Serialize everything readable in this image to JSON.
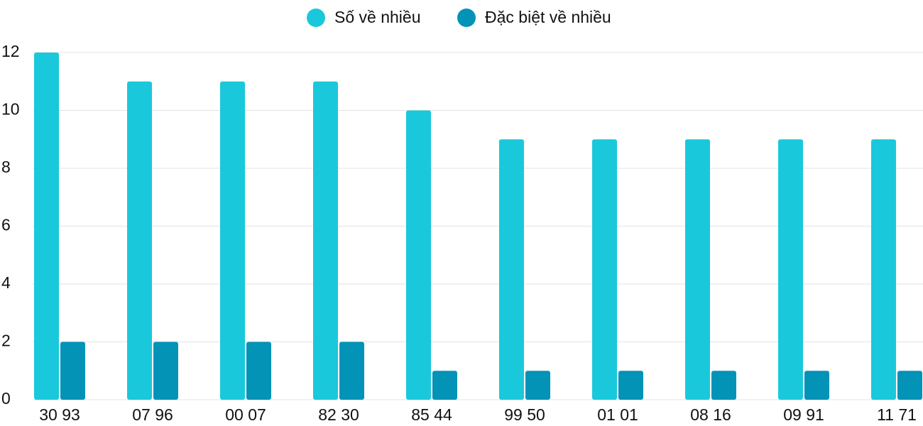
{
  "chart_data": {
    "type": "bar",
    "categories": [
      "30 93",
      "07 96",
      "00 07",
      "82 30",
      "85 44",
      "99 50",
      "01 01",
      "08 16",
      "09 91",
      "11 71"
    ],
    "series": [
      {
        "name": "Số về nhiều",
        "color": "#1ac8db",
        "values": [
          12,
          11,
          11,
          11,
          10,
          9,
          9,
          9,
          9,
          9
        ]
      },
      {
        "name": "Đặc biệt về nhiều",
        "color": "#0393b7",
        "values": [
          2,
          2,
          2,
          2,
          1,
          1,
          1,
          1,
          1,
          1
        ]
      }
    ],
    "ylim": [
      0,
      12
    ],
    "yticks": [
      0,
      2,
      4,
      6,
      8,
      10,
      12
    ],
    "grid": true,
    "legend": "top"
  }
}
